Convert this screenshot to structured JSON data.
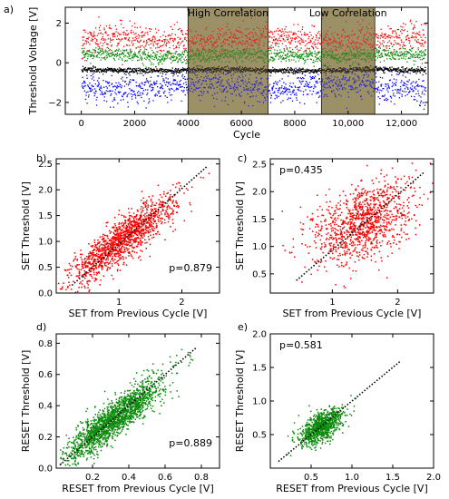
{
  "panel_labels": [
    "a)",
    "b)",
    "c)",
    "d)",
    "e)"
  ],
  "colors": {
    "set": "#ff0000",
    "reset": "#0a8a0a",
    "black_series": "#000000",
    "blue_series": "#0000ff",
    "shade": "#8a7a4a",
    "fit_line": "#000000"
  },
  "chart_data": [
    {
      "id": "a",
      "type": "scatter",
      "xlabel": "Cycle",
      "ylabel": "Threshold Voltage [V]",
      "xlim": [
        -600,
        13000
      ],
      "ylim": [
        -2.6,
        2.8
      ],
      "xticks": [
        0,
        2000,
        4000,
        6000,
        8000,
        10000,
        12000
      ],
      "xtick_labels": [
        "0",
        "2000",
        "4000",
        "6000",
        "8000",
        "10,000",
        "12,000"
      ],
      "yticks": [
        -2,
        0,
        2
      ],
      "ytick_labels": [
        "−2",
        "0",
        "2"
      ],
      "annotations": [
        {
          "text": "High Correlation",
          "x_range": [
            4000,
            7000
          ]
        },
        {
          "text": "Low Correlation",
          "x_range": [
            9000,
            11000
          ]
        }
      ],
      "series": [
        {
          "color": "red",
          "x_range": [
            0,
            12900
          ],
          "mean": 1.2,
          "spread": 0.35
        },
        {
          "color": "green",
          "x_range": [
            0,
            12900
          ],
          "mean": 0.4,
          "spread": 0.18
        },
        {
          "color": "black",
          "x_range": [
            0,
            12900
          ],
          "mean": -0.35,
          "spread": 0.07
        },
        {
          "color": "blue",
          "x_range": [
            0,
            12900
          ],
          "mean": -1.2,
          "spread": 0.35
        }
      ]
    },
    {
      "id": "b",
      "type": "scatter",
      "xlabel": "SET from Previous Cycle [V]",
      "ylabel": "SET Threshold [V]",
      "xlim": [
        0,
        2.6
      ],
      "ylim": [
        0,
        2.6
      ],
      "xticks": [
        1,
        2
      ],
      "xtick_labels": [
        "1",
        "2"
      ],
      "yticks": [
        0.0,
        0.5,
        1.0,
        1.5,
        2.0,
        2.5
      ],
      "ytick_labels": [
        "0.0",
        "0.5",
        "1.0",
        "1.5",
        "2.0",
        "2.5"
      ],
      "annotation": "p=0.879",
      "color": "red",
      "n_points": 1400,
      "x_mean": 1.05,
      "x_sd": 0.42,
      "correlation": 0.879,
      "fit_line": [
        [
          0.25,
          0.15
        ],
        [
          2.4,
          2.45
        ]
      ]
    },
    {
      "id": "c",
      "type": "scatter",
      "xlabel": "SET from Previous Cycle [V]",
      "ylabel": "SET Threshold [V]",
      "xlim": [
        0.05,
        2.55
      ],
      "ylim": [
        0.15,
        2.6
      ],
      "xticks": [
        1,
        2
      ],
      "xtick_labels": [
        "1",
        "2"
      ],
      "yticks": [
        0.5,
        1.0,
        1.5,
        2.0,
        2.5
      ],
      "ytick_labels": [
        "0.5",
        "1.0",
        "1.5",
        "2.0",
        "2.5"
      ],
      "annotation": "p=0.435",
      "color": "red",
      "n_points": 1100,
      "x_mean": 1.45,
      "x_sd": 0.38,
      "correlation": 0.435,
      "fit_line": [
        [
          0.45,
          0.38
        ],
        [
          2.4,
          2.35
        ]
      ]
    },
    {
      "id": "d",
      "type": "scatter",
      "xlabel": "RESET from Previous Cycle [V]",
      "ylabel": "RESET Threshold [V]",
      "xlim": [
        0,
        0.9
      ],
      "ylim": [
        0,
        0.86
      ],
      "xticks": [
        0.2,
        0.4,
        0.6,
        0.8
      ],
      "xtick_labels": [
        "0.2",
        "0.4",
        "0.6",
        "0.8"
      ],
      "yticks": [
        0.0,
        0.2,
        0.4,
        0.6,
        0.8
      ],
      "ytick_labels": [
        "0.0",
        "0.2",
        "0.4",
        "0.6",
        "0.8"
      ],
      "annotation": "p=0.889",
      "color": "green",
      "n_points": 1800,
      "x_mean": 0.32,
      "x_sd": 0.13,
      "correlation": 0.889,
      "fit_line": [
        [
          0.02,
          0.02
        ],
        [
          0.77,
          0.77
        ]
      ]
    },
    {
      "id": "e",
      "type": "scatter",
      "xlabel": "RESET from Previous Cycle [V]",
      "ylabel": "RESET Threshold [V]",
      "xlim": [
        0,
        2.0
      ],
      "ylim": [
        0,
        2.0
      ],
      "xticks": [
        0.5,
        1.0,
        1.5,
        2.0
      ],
      "xtick_labels": [
        "0.5",
        "1.0",
        "1.5",
        "2.0"
      ],
      "yticks": [
        0.5,
        1.0,
        1.5,
        2.0
      ],
      "ytick_labels": [
        "0.5",
        "1.0",
        "1.5",
        "2.0"
      ],
      "annotation": "p=0.581",
      "color": "green",
      "n_points": 900,
      "x_mean": 0.62,
      "x_sd": 0.13,
      "correlation": 0.581,
      "fit_line": [
        [
          0.1,
          0.1
        ],
        [
          1.6,
          1.6
        ]
      ]
    }
  ]
}
